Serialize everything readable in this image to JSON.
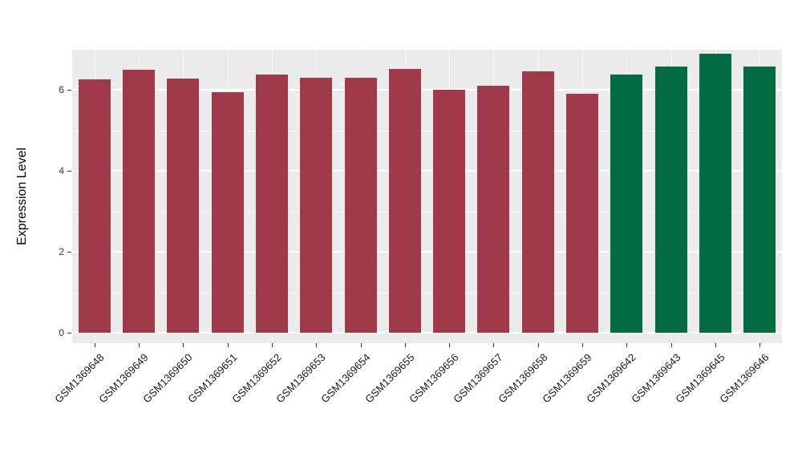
{
  "chart_data": {
    "type": "bar",
    "title": "",
    "xlabel": "",
    "ylabel": "Expression Level",
    "ylim": [
      0,
      7.0
    ],
    "yticks": [
      0,
      2,
      4,
      6
    ],
    "grid": "on",
    "legend": "none",
    "panel_background": "#EBEBEB",
    "bar_colors": {
      "group1": "#9E3A4A",
      "group2": "#046B45"
    },
    "bars": [
      {
        "label": "GSM1369648",
        "value": 6.25,
        "color": "#9E3A4A"
      },
      {
        "label": "GSM1369649",
        "value": 6.5,
        "color": "#9E3A4A"
      },
      {
        "label": "GSM1369650",
        "value": 6.27,
        "color": "#9E3A4A"
      },
      {
        "label": "GSM1369651",
        "value": 5.95,
        "color": "#9E3A4A"
      },
      {
        "label": "GSM1369652",
        "value": 6.37,
        "color": "#9E3A4A"
      },
      {
        "label": "GSM1369653",
        "value": 6.29,
        "color": "#9E3A4A"
      },
      {
        "label": "GSM1369654",
        "value": 6.3,
        "color": "#9E3A4A"
      },
      {
        "label": "GSM1369655",
        "value": 6.51,
        "color": "#9E3A4A"
      },
      {
        "label": "GSM1369656",
        "value": 6.0,
        "color": "#9E3A4A"
      },
      {
        "label": "GSM1369657",
        "value": 6.1,
        "color": "#9E3A4A"
      },
      {
        "label": "GSM1369658",
        "value": 6.45,
        "color": "#9E3A4A"
      },
      {
        "label": "GSM1369659",
        "value": 5.9,
        "color": "#9E3A4A"
      },
      {
        "label": "GSM1369642",
        "value": 6.37,
        "color": "#046B45"
      },
      {
        "label": "GSM1369643",
        "value": 6.57,
        "color": "#046B45"
      },
      {
        "label": "GSM1369645",
        "value": 6.9,
        "color": "#046B45"
      },
      {
        "label": "GSM1369646",
        "value": 6.57,
        "color": "#046B45"
      }
    ]
  }
}
